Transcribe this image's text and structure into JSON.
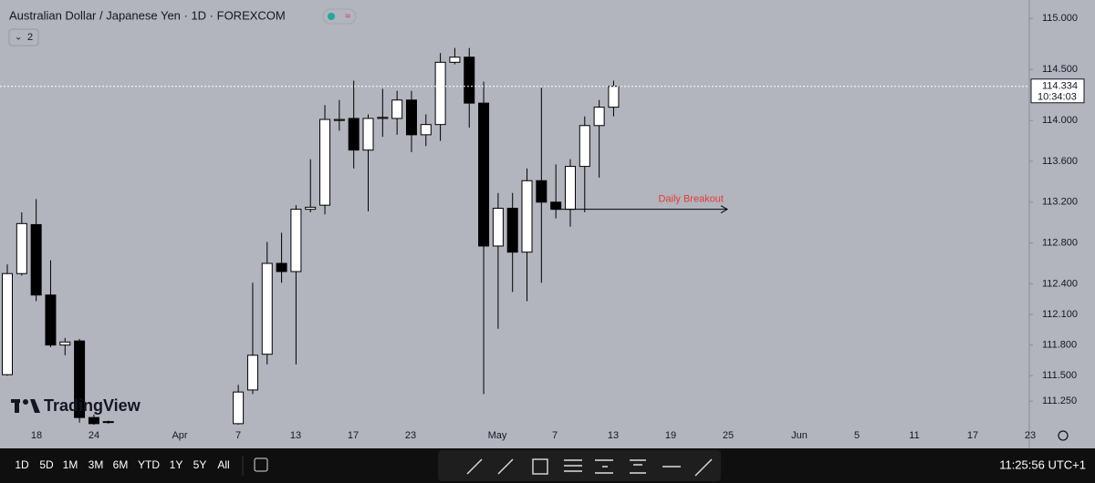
{
  "header": {
    "title": "Australian Dollar / Japanese Yen · 1D · FOREXCOM",
    "indicators": "2"
  },
  "logo": "TradingView",
  "chart_data": {
    "type": "candlestick",
    "open": [
      111.51,
      112.5,
      112.98,
      112.29,
      111.8,
      111.84,
      111.09,
      111.05,
      null,
      null,
      null,
      null,
      null,
      null,
      null,
      null,
      111.03,
      111.36,
      111.71,
      112.6,
      112.52,
      113.13,
      113.17,
      114.0,
      114.02,
      113.71,
      114.02,
      114.02,
      114.2,
      113.86,
      113.96,
      114.57,
      114.62,
      114.17,
      112.77,
      113.14,
      112.71,
      113.41,
      113.2,
      113.13,
      113.55,
      113.95,
      114.13
    ],
    "high": [
      112.59,
      113.1,
      113.23,
      112.63,
      111.87,
      111.86,
      111.12,
      111.06,
      null,
      null,
      null,
      null,
      null,
      null,
      null,
      null,
      111.41,
      112.41,
      112.81,
      112.9,
      113.17,
      113.62,
      114.15,
      114.2,
      114.39,
      114.06,
      114.31,
      114.29,
      114.29,
      114.06,
      114.66,
      114.71,
      114.71,
      114.38,
      113.29,
      113.29,
      113.53,
      114.32,
      113.57,
      113.62,
      114.04,
      114.2,
      114.39
    ],
    "low": [
      111.5,
      112.48,
      112.23,
      111.78,
      111.7,
      111.04,
      111.01,
      111.03,
      null,
      null,
      null,
      null,
      null,
      null,
      null,
      null,
      110.9,
      111.32,
      111.61,
      112.41,
      111.61,
      113.1,
      113.08,
      113.9,
      113.53,
      113.11,
      113.84,
      113.86,
      113.69,
      113.75,
      113.8,
      114.55,
      113.93,
      111.32,
      111.96,
      112.32,
      112.23,
      112.41,
      113.04,
      112.96,
      113.1,
      113.44,
      114.04
    ],
    "close": [
      112.5,
      112.99,
      112.29,
      111.8,
      111.83,
      111.09,
      111.03,
      111.05,
      null,
      null,
      null,
      null,
      null,
      null,
      null,
      null,
      111.34,
      111.7,
      112.6,
      112.52,
      113.13,
      113.15,
      114.01,
      114.01,
      113.71,
      114.02,
      114.03,
      114.2,
      113.86,
      113.96,
      114.57,
      114.62,
      114.17,
      112.77,
      113.14,
      112.71,
      113.41,
      113.2,
      113.13,
      113.55,
      113.95,
      114.13,
      114.334
    ],
    "up_color": "#ffffff",
    "down_color": "#000000",
    "ylim": [
      111.02,
      115.18
    ],
    "yticks": [
      {
        "value": 115,
        "label": "115.000"
      },
      {
        "value": 114.5,
        "label": "114.500"
      },
      {
        "value": 114,
        "label": "114.000"
      },
      {
        "value": 113.6,
        "label": "113.600"
      },
      {
        "value": 113.2,
        "label": "113.200"
      },
      {
        "value": 112.8,
        "label": "112.800"
      },
      {
        "value": 112.4,
        "label": "112.400"
      },
      {
        "value": 112.1,
        "label": "112.100"
      },
      {
        "value": 111.8,
        "label": "111.800"
      },
      {
        "value": 111.5,
        "label": "111.500"
      },
      {
        "value": 111.25,
        "label": "111.250"
      }
    ],
    "xtick_labels": [
      "18",
      "24",
      "Apr",
      "7",
      "13",
      "17",
      "23",
      "May",
      "7",
      "13",
      "19",
      "25",
      "Jun",
      "5",
      "11",
      "17",
      "23"
    ],
    "last_price": 114.334,
    "countdown": "10:34:03",
    "annotation": {
      "text": "Daily Breakout",
      "value": 113.13
    }
  },
  "toolbar": {
    "ranges": [
      "1D",
      "5D",
      "1M",
      "3M",
      "6M",
      "YTD",
      "1Y",
      "5Y",
      "All"
    ],
    "clock": "11:25:56 UTC+1"
  }
}
